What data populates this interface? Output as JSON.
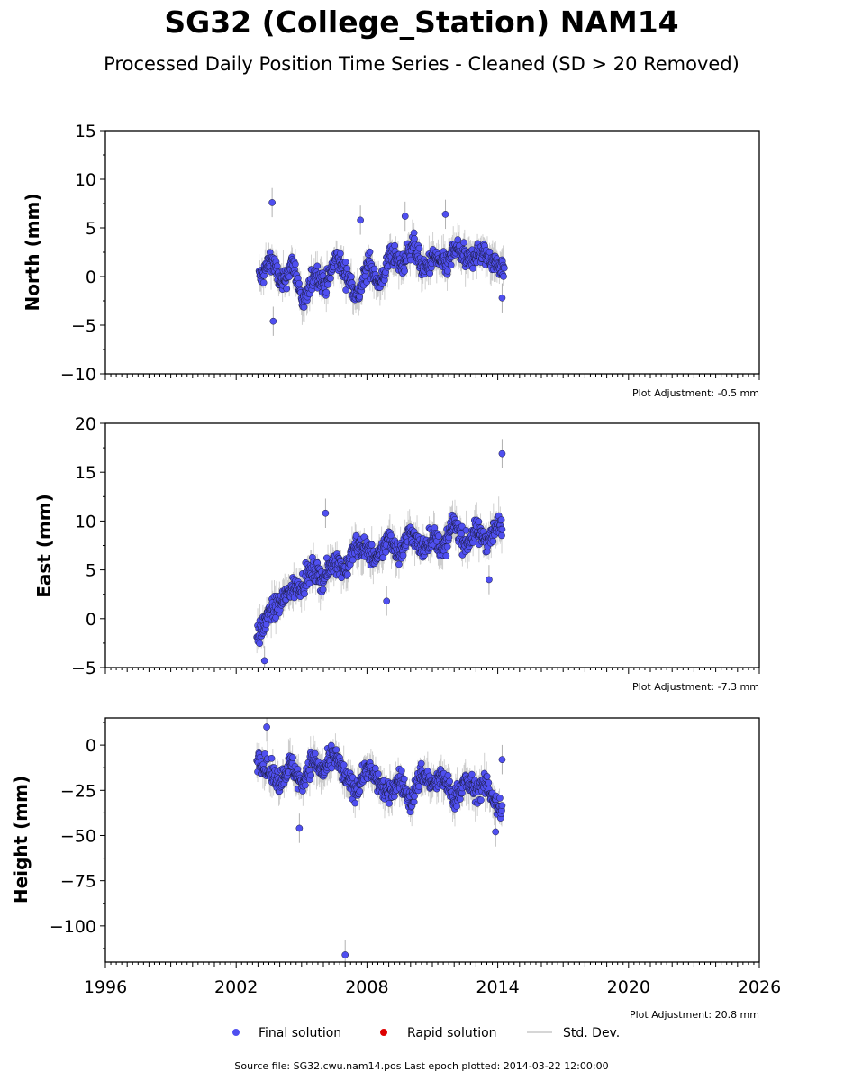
{
  "title": "SG32 (College_Station) NAM14",
  "subtitle": "Processed Daily Position Time Series - Cleaned (SD > 20 Removed)",
  "colors": {
    "final_solution": "#4f4ff0",
    "marker_edge": "#1a1a3a",
    "rapid_solution": "#dd0000",
    "std_dev": "#b0b0b0"
  },
  "legend": {
    "final": "Final solution",
    "rapid": "Rapid solution",
    "stddev": "Std. Dev."
  },
  "footer": {
    "source": "Source file: SG32.cwu.nam14.pos  Last epoch plotted: 2014-03-22 12:00:00"
  },
  "chart_data": [
    {
      "type": "scatter",
      "ylabel": "North (mm)",
      "adjustment": "Plot Adjustment: -0.5 mm",
      "xlim": [
        1996,
        2026
      ],
      "ylim": [
        -10,
        15
      ],
      "yticks": [
        -10,
        -5,
        0,
        5,
        10,
        15
      ],
      "ytick_labels": [
        "−10",
        "−5",
        "0",
        "5",
        "10",
        "15"
      ],
      "x": [
        2003.2,
        2003.6,
        2004.1,
        2004.6,
        2005.1,
        2005.6,
        2006.1,
        2006.6,
        2007.1,
        2007.6,
        2008.1,
        2008.6,
        2009.1,
        2009.6,
        2010.1,
        2010.6,
        2011.1,
        2011.6,
        2012.1,
        2012.6,
        2013.1,
        2013.6,
        2014.1
      ],
      "y": [
        0.0,
        2.0,
        -1.0,
        1.5,
        -3.0,
        0.5,
        -1.0,
        2.0,
        0.0,
        -2.0,
        1.5,
        -1.0,
        2.5,
        1.0,
        3.5,
        0.5,
        2.0,
        1.0,
        3.0,
        1.5,
        2.5,
        2.0,
        1.0
      ],
      "outliers": {
        "x": [
          2003.65,
          2003.7,
          2007.7,
          2014.2,
          2009.75,
          2011.6
        ],
        "y": [
          7.6,
          -4.6,
          5.8,
          -2.2,
          6.2,
          6.4
        ]
      }
    },
    {
      "type": "scatter",
      "ylabel": "East (mm)",
      "adjustment": "Plot Adjustment: -7.3 mm",
      "xlim": [
        1996,
        2026
      ],
      "ylim": [
        -5,
        20
      ],
      "yticks": [
        -5,
        0,
        5,
        10,
        15,
        20
      ],
      "ytick_labels": [
        "−5",
        "0",
        "5",
        "10",
        "15",
        "20"
      ],
      "x": [
        2003.1,
        2003.5,
        2004.0,
        2004.5,
        2005.0,
        2005.5,
        2006.0,
        2006.5,
        2007.0,
        2007.5,
        2008.0,
        2008.5,
        2009.0,
        2009.5,
        2010.0,
        2010.5,
        2011.0,
        2011.5,
        2012.0,
        2012.5,
        2013.0,
        2013.5,
        2014.0
      ],
      "y": [
        -1.5,
        0.5,
        1.5,
        3.0,
        3.5,
        5.0,
        4.0,
        6.0,
        5.0,
        7.5,
        7.0,
        6.0,
        8.5,
        6.5,
        9.0,
        7.0,
        8.5,
        7.0,
        10.0,
        7.5,
        9.0,
        8.0,
        9.5
      ],
      "outliers": {
        "x": [
          2006.1,
          2014.2,
          2003.3,
          2008.9,
          2013.6
        ],
        "y": [
          10.8,
          16.9,
          -4.3,
          1.8,
          4.0
        ]
      }
    },
    {
      "type": "scatter",
      "ylabel": "Height (mm)",
      "adjustment": "Plot Adjustment: 20.8 mm",
      "xlim": [
        1996,
        2026
      ],
      "ylim": [
        -120,
        15
      ],
      "yticks": [
        -100,
        -75,
        -50,
        -25,
        0
      ],
      "ytick_labels": [
        "−100",
        "−75",
        "−50",
        "−25",
        "0"
      ],
      "xticks": [
        1996,
        2002,
        2008,
        2014,
        2020,
        2026
      ],
      "xtick_labels": [
        "1996",
        "2002",
        "2008",
        "2014",
        "2020",
        "2026"
      ],
      "x": [
        2003.1,
        2003.5,
        2004.0,
        2004.5,
        2005.0,
        2005.5,
        2006.0,
        2006.5,
        2007.0,
        2007.5,
        2008.0,
        2008.5,
        2009.0,
        2009.5,
        2010.0,
        2010.5,
        2011.0,
        2011.5,
        2012.0,
        2012.5,
        2013.0,
        2013.5,
        2014.0
      ],
      "y": [
        -8,
        -15,
        -20,
        -10,
        -22,
        -8,
        -15,
        -5,
        -18,
        -25,
        -12,
        -20,
        -28,
        -18,
        -32,
        -15,
        -22,
        -18,
        -30,
        -20,
        -25,
        -22,
        -35
      ],
      "outliers": {
        "x": [
          2007.0,
          2004.9,
          2003.4,
          2014.2,
          2013.9
        ],
        "y": [
          -116,
          -46,
          10,
          -8,
          -48
        ]
      }
    }
  ]
}
